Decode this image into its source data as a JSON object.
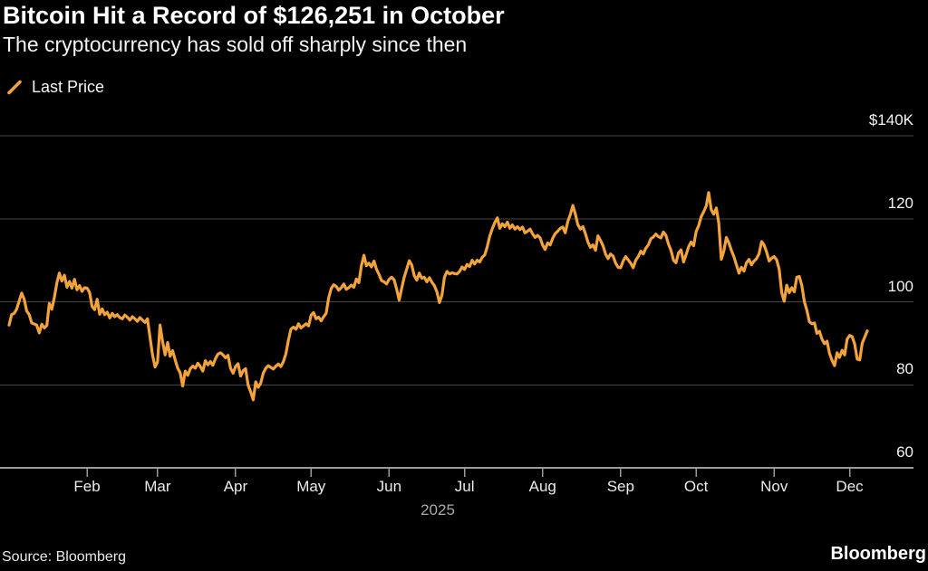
{
  "header": {
    "title": "Bitcoin Hit a Record of $126,251 in October",
    "subtitle": "The cryptocurrency has sold off sharply since then"
  },
  "legend": {
    "label": "Last Price"
  },
  "footer": {
    "source": "Source: Bloomberg",
    "brand": "Bloomberg"
  },
  "chart_data": {
    "type": "line",
    "title": "Bitcoin Hit a Record of $126,251 in October",
    "subtitle": "The cryptocurrency has sold off sharply since then",
    "series_name": "Last Price",
    "line_color": "#F2A33C",
    "background_color": "#000000",
    "grid": true,
    "legend_position": "top-left",
    "x_unit": "day of year 2025 (1 = Jan 1)",
    "x_range_days": [
      1,
      342
    ],
    "x_tick_labels": [
      "Feb",
      "Mar",
      "Apr",
      "May",
      "Jun",
      "Jul",
      "Aug",
      "Sep",
      "Oct",
      "Nov",
      "Dec"
    ],
    "x_tick_days": [
      32,
      60,
      91,
      121,
      152,
      182,
      213,
      244,
      274,
      305,
      335
    ],
    "x_axis_year_label": "2025",
    "y_unit": "USD thousands",
    "y_tick_labels": [
      "$140K",
      "120",
      "100",
      "80",
      "60"
    ],
    "y_tick_values": [
      140,
      120,
      100,
      80,
      60
    ],
    "ylim": [
      60,
      143
    ],
    "peak_annotation": "Record $126,251 on Oct 6, 2025 (shown by line peak)",
    "points": [
      [
        1,
        94.4
      ],
      [
        2,
        96.9
      ],
      [
        3,
        97.2
      ],
      [
        4,
        98.2
      ],
      [
        6,
        102.1
      ],
      [
        7,
        100.6
      ],
      [
        8,
        97.8
      ],
      [
        9,
        96.9
      ],
      [
        10,
        94.9
      ],
      [
        12,
        94.4
      ],
      [
        13,
        92.5
      ],
      [
        14,
        94.6
      ],
      [
        15,
        93.7
      ],
      [
        16,
        94.3
      ],
      [
        17,
        99.6
      ],
      [
        18,
        98.2
      ],
      [
        19,
        101.1
      ],
      [
        20,
        104.6
      ],
      [
        21,
        106.9
      ],
      [
        22,
        105.0
      ],
      [
        23,
        106.4
      ],
      [
        24,
        103.5
      ],
      [
        25,
        104.9
      ],
      [
        26,
        103.3
      ],
      [
        27,
        105.4
      ],
      [
        28,
        102.9
      ],
      [
        29,
        103.9
      ],
      [
        30,
        102.5
      ],
      [
        31,
        103.4
      ],
      [
        32,
        103.3
      ],
      [
        33,
        102.2
      ],
      [
        34,
        98.9
      ],
      [
        35,
        98.1
      ],
      [
        36,
        100.6
      ],
      [
        37,
        97.0
      ],
      [
        38,
        98.3
      ],
      [
        39,
        96.9
      ],
      [
        40,
        97.5
      ],
      [
        41,
        96.1
      ],
      [
        42,
        97.2
      ],
      [
        43,
        96.4
      ],
      [
        44,
        96.9
      ],
      [
        45,
        96.2
      ],
      [
        46,
        95.9
      ],
      [
        47,
        96.8
      ],
      [
        48,
        96.3
      ],
      [
        49,
        95.6
      ],
      [
        50,
        96.4
      ],
      [
        51,
        95.9
      ],
      [
        52,
        95.3
      ],
      [
        53,
        96.2
      ],
      [
        54,
        95.6
      ],
      [
        55,
        95.0
      ],
      [
        56,
        95.9
      ],
      [
        57,
        91.5
      ],
      [
        58,
        87.2
      ],
      [
        59,
        84.3
      ],
      [
        60,
        85.5
      ],
      [
        61,
        94.4
      ],
      [
        62,
        90.4
      ],
      [
        63,
        87.2
      ],
      [
        64,
        90.2
      ],
      [
        65,
        86.9
      ],
      [
        66,
        88.2
      ],
      [
        67,
        86.0
      ],
      [
        68,
        84.0
      ],
      [
        69,
        82.9
      ],
      [
        70,
        79.7
      ],
      [
        71,
        83.3
      ],
      [
        72,
        82.3
      ],
      [
        73,
        83.9
      ],
      [
        74,
        84.5
      ],
      [
        75,
        84.0
      ],
      [
        76,
        85.2
      ],
      [
        77,
        84.4
      ],
      [
        78,
        83.3
      ],
      [
        79,
        85.8
      ],
      [
        80,
        84.8
      ],
      [
        81,
        85.6
      ],
      [
        82,
        84.7
      ],
      [
        83,
        86.3
      ],
      [
        84,
        87.4
      ],
      [
        85,
        87.7
      ],
      [
        86,
        87.2
      ],
      [
        87,
        86.5
      ],
      [
        88,
        87.1
      ],
      [
        89,
        84.0
      ],
      [
        90,
        82.8
      ],
      [
        91,
        84.4
      ],
      [
        92,
        85.1
      ],
      [
        93,
        82.1
      ],
      [
        94,
        83.4
      ],
      [
        95,
        83.9
      ],
      [
        96,
        79.9
      ],
      [
        97,
        78.3
      ],
      [
        98,
        76.4
      ],
      [
        99,
        80.7
      ],
      [
        100,
        79.4
      ],
      [
        101,
        80.4
      ],
      [
        102,
        82.8
      ],
      [
        103,
        84.0
      ],
      [
        104,
        84.6
      ],
      [
        105,
        84.2
      ],
      [
        106,
        83.8
      ],
      [
        107,
        84.5
      ],
      [
        108,
        85.0
      ],
      [
        109,
        84.4
      ],
      [
        110,
        85.6
      ],
      [
        111,
        87.5
      ],
      [
        112,
        90.8
      ],
      [
        113,
        93.4
      ],
      [
        114,
        93.9
      ],
      [
        115,
        93.4
      ],
      [
        116,
        94.7
      ],
      [
        117,
        93.7
      ],
      [
        118,
        94.2
      ],
      [
        119,
        94.7
      ],
      [
        120,
        94.2
      ],
      [
        121,
        96.8
      ],
      [
        122,
        97.4
      ],
      [
        123,
        95.9
      ],
      [
        124,
        96.3
      ],
      [
        125,
        95.4
      ],
      [
        126,
        96.4
      ],
      [
        127,
        97.2
      ],
      [
        128,
        101.0
      ],
      [
        129,
        103.2
      ],
      [
        130,
        104.1
      ],
      [
        131,
        103.7
      ],
      [
        132,
        102.8
      ],
      [
        133,
        103.4
      ],
      [
        134,
        104.3
      ],
      [
        135,
        103.0
      ],
      [
        136,
        103.4
      ],
      [
        137,
        104.0
      ],
      [
        138,
        103.5
      ],
      [
        139,
        105.5
      ],
      [
        140,
        104.6
      ],
      [
        141,
        108.7
      ],
      [
        142,
        111.2
      ],
      [
        143,
        108.7
      ],
      [
        144,
        109.3
      ],
      [
        145,
        108.4
      ],
      [
        146,
        109.8
      ],
      [
        147,
        107.8
      ],
      [
        148,
        106.6
      ],
      [
        149,
        105.1
      ],
      [
        150,
        104.8
      ],
      [
        151,
        104.3
      ],
      [
        152,
        105.4
      ],
      [
        153,
        105.9
      ],
      [
        154,
        105.3
      ],
      [
        155,
        103.0
      ],
      [
        156,
        100.4
      ],
      [
        157,
        103.2
      ],
      [
        158,
        105.9
      ],
      [
        159,
        107.9
      ],
      [
        160,
        109.9
      ],
      [
        161,
        108.9
      ],
      [
        162,
        106.3
      ],
      [
        163,
        105.2
      ],
      [
        164,
        106.9
      ],
      [
        165,
        105.7
      ],
      [
        166,
        105.9
      ],
      [
        167,
        104.8
      ],
      [
        168,
        105.8
      ],
      [
        169,
        104.7
      ],
      [
        170,
        103.9
      ],
      [
        171,
        102.4
      ],
      [
        172,
        99.8
      ],
      [
        173,
        101.6
      ],
      [
        174,
        105.9
      ],
      [
        175,
        107.3
      ],
      [
        176,
        106.7
      ],
      [
        177,
        107.0
      ],
      [
        178,
        106.8
      ],
      [
        179,
        106.7
      ],
      [
        180,
        107.3
      ],
      [
        181,
        108.4
      ],
      [
        182,
        107.8
      ],
      [
        183,
        109.0
      ],
      [
        184,
        108.5
      ],
      [
        185,
        110.0
      ],
      [
        186,
        109.1
      ],
      [
        187,
        110.0
      ],
      [
        188,
        109.6
      ],
      [
        189,
        110.7
      ],
      [
        190,
        111.3
      ],
      [
        191,
        113.2
      ],
      [
        192,
        115.8
      ],
      [
        193,
        117.6
      ],
      [
        194,
        119.1
      ],
      [
        195,
        120.2
      ],
      [
        196,
        117.7
      ],
      [
        197,
        118.8
      ],
      [
        198,
        118.1
      ],
      [
        199,
        119.2
      ],
      [
        200,
        117.7
      ],
      [
        201,
        118.5
      ],
      [
        202,
        117.5
      ],
      [
        203,
        118.1
      ],
      [
        204,
        117.4
      ],
      [
        205,
        118.0
      ],
      [
        206,
        116.6
      ],
      [
        207,
        117.0
      ],
      [
        208,
        117.5
      ],
      [
        209,
        116.4
      ],
      [
        210,
        115.5
      ],
      [
        211,
        116.0
      ],
      [
        212,
        115.4
      ],
      [
        213,
        113.7
      ],
      [
        214,
        112.6
      ],
      [
        215,
        114.2
      ],
      [
        216,
        113.7
      ],
      [
        217,
        115.3
      ],
      [
        218,
        116.4
      ],
      [
        219,
        117.0
      ],
      [
        220,
        117.7
      ],
      [
        221,
        118.0
      ],
      [
        222,
        116.6
      ],
      [
        223,
        119.3
      ],
      [
        224,
        121.0
      ],
      [
        225,
        123.2
      ],
      [
        226,
        121.2
      ],
      [
        227,
        118.6
      ],
      [
        228,
        117.5
      ],
      [
        229,
        118.1
      ],
      [
        230,
        116.4
      ],
      [
        231,
        114.4
      ],
      [
        232,
        113.1
      ],
      [
        233,
        113.7
      ],
      [
        234,
        112.4
      ],
      [
        235,
        115.9
      ],
      [
        236,
        114.8
      ],
      [
        237,
        113.5
      ],
      [
        238,
        111.5
      ],
      [
        239,
        110.4
      ],
      [
        240,
        111.5
      ],
      [
        241,
        111.0
      ],
      [
        242,
        109.3
      ],
      [
        243,
        108.3
      ],
      [
        244,
        108.2
      ],
      [
        245,
        109.8
      ],
      [
        246,
        110.9
      ],
      [
        247,
        110.1
      ],
      [
        248,
        109.3
      ],
      [
        249,
        108.2
      ],
      [
        250,
        110.0
      ],
      [
        251,
        110.9
      ],
      [
        252,
        112.2
      ],
      [
        253,
        111.5
      ],
      [
        254,
        112.9
      ],
      [
        255,
        113.7
      ],
      [
        256,
        115.2
      ],
      [
        257,
        115.6
      ],
      [
        258,
        116.3
      ],
      [
        259,
        115.7
      ],
      [
        260,
        115.4
      ],
      [
        261,
        116.8
      ],
      [
        262,
        116.0
      ],
      [
        263,
        113.9
      ],
      [
        264,
        112.4
      ],
      [
        265,
        110.0
      ],
      [
        266,
        109.4
      ],
      [
        267,
        111.8
      ],
      [
        268,
        112.5
      ],
      [
        269,
        109.6
      ],
      [
        270,
        111.3
      ],
      [
        271,
        113.2
      ],
      [
        272,
        114.4
      ],
      [
        273,
        113.5
      ],
      [
        274,
        116.9
      ],
      [
        275,
        118.3
      ],
      [
        276,
        120.5
      ],
      [
        277,
        121.7
      ],
      [
        278,
        123.1
      ],
      [
        279,
        126.3
      ],
      [
        280,
        122.2
      ],
      [
        281,
        121.1
      ],
      [
        282,
        122.6
      ],
      [
        283,
        119.0
      ],
      [
        284,
        110.2
      ],
      [
        285,
        112.2
      ],
      [
        286,
        115.5
      ],
      [
        287,
        114.2
      ],
      [
        288,
        112.4
      ],
      [
        289,
        110.9
      ],
      [
        290,
        108.9
      ],
      [
        291,
        106.9
      ],
      [
        292,
        108.3
      ],
      [
        293,
        107.4
      ],
      [
        294,
        109.4
      ],
      [
        295,
        110.2
      ],
      [
        296,
        108.9
      ],
      [
        297,
        109.8
      ],
      [
        298,
        110.4
      ],
      [
        299,
        111.6
      ],
      [
        300,
        114.5
      ],
      [
        301,
        113.7
      ],
      [
        302,
        112.0
      ],
      [
        303,
        109.8
      ],
      [
        304,
        110.5
      ],
      [
        305,
        110.9
      ],
      [
        306,
        110.1
      ],
      [
        307,
        107.8
      ],
      [
        308,
        102.2
      ],
      [
        309,
        100.1
      ],
      [
        310,
        104.0
      ],
      [
        311,
        102.2
      ],
      [
        312,
        103.4
      ],
      [
        313,
        102.4
      ],
      [
        314,
        105.9
      ],
      [
        315,
        106.1
      ],
      [
        316,
        103.9
      ],
      [
        317,
        100.0
      ],
      [
        318,
        98.0
      ],
      [
        319,
        95.2
      ],
      [
        320,
        94.7
      ],
      [
        321,
        94.9
      ],
      [
        322,
        92.4
      ],
      [
        323,
        92.9
      ],
      [
        324,
        91.0
      ],
      [
        325,
        89.9
      ],
      [
        326,
        90.5
      ],
      [
        327,
        87.6
      ],
      [
        328,
        85.9
      ],
      [
        329,
        84.6
      ],
      [
        330,
        87.7
      ],
      [
        331,
        86.6
      ],
      [
        332,
        88.3
      ],
      [
        333,
        87.2
      ],
      [
        334,
        91.0
      ],
      [
        335,
        91.9
      ],
      [
        336,
        91.6
      ],
      [
        337,
        89.8
      ],
      [
        338,
        86.2
      ],
      [
        339,
        86.0
      ],
      [
        340,
        90.0
      ],
      [
        341,
        91.5
      ],
      [
        342,
        93.0
      ]
    ]
  }
}
